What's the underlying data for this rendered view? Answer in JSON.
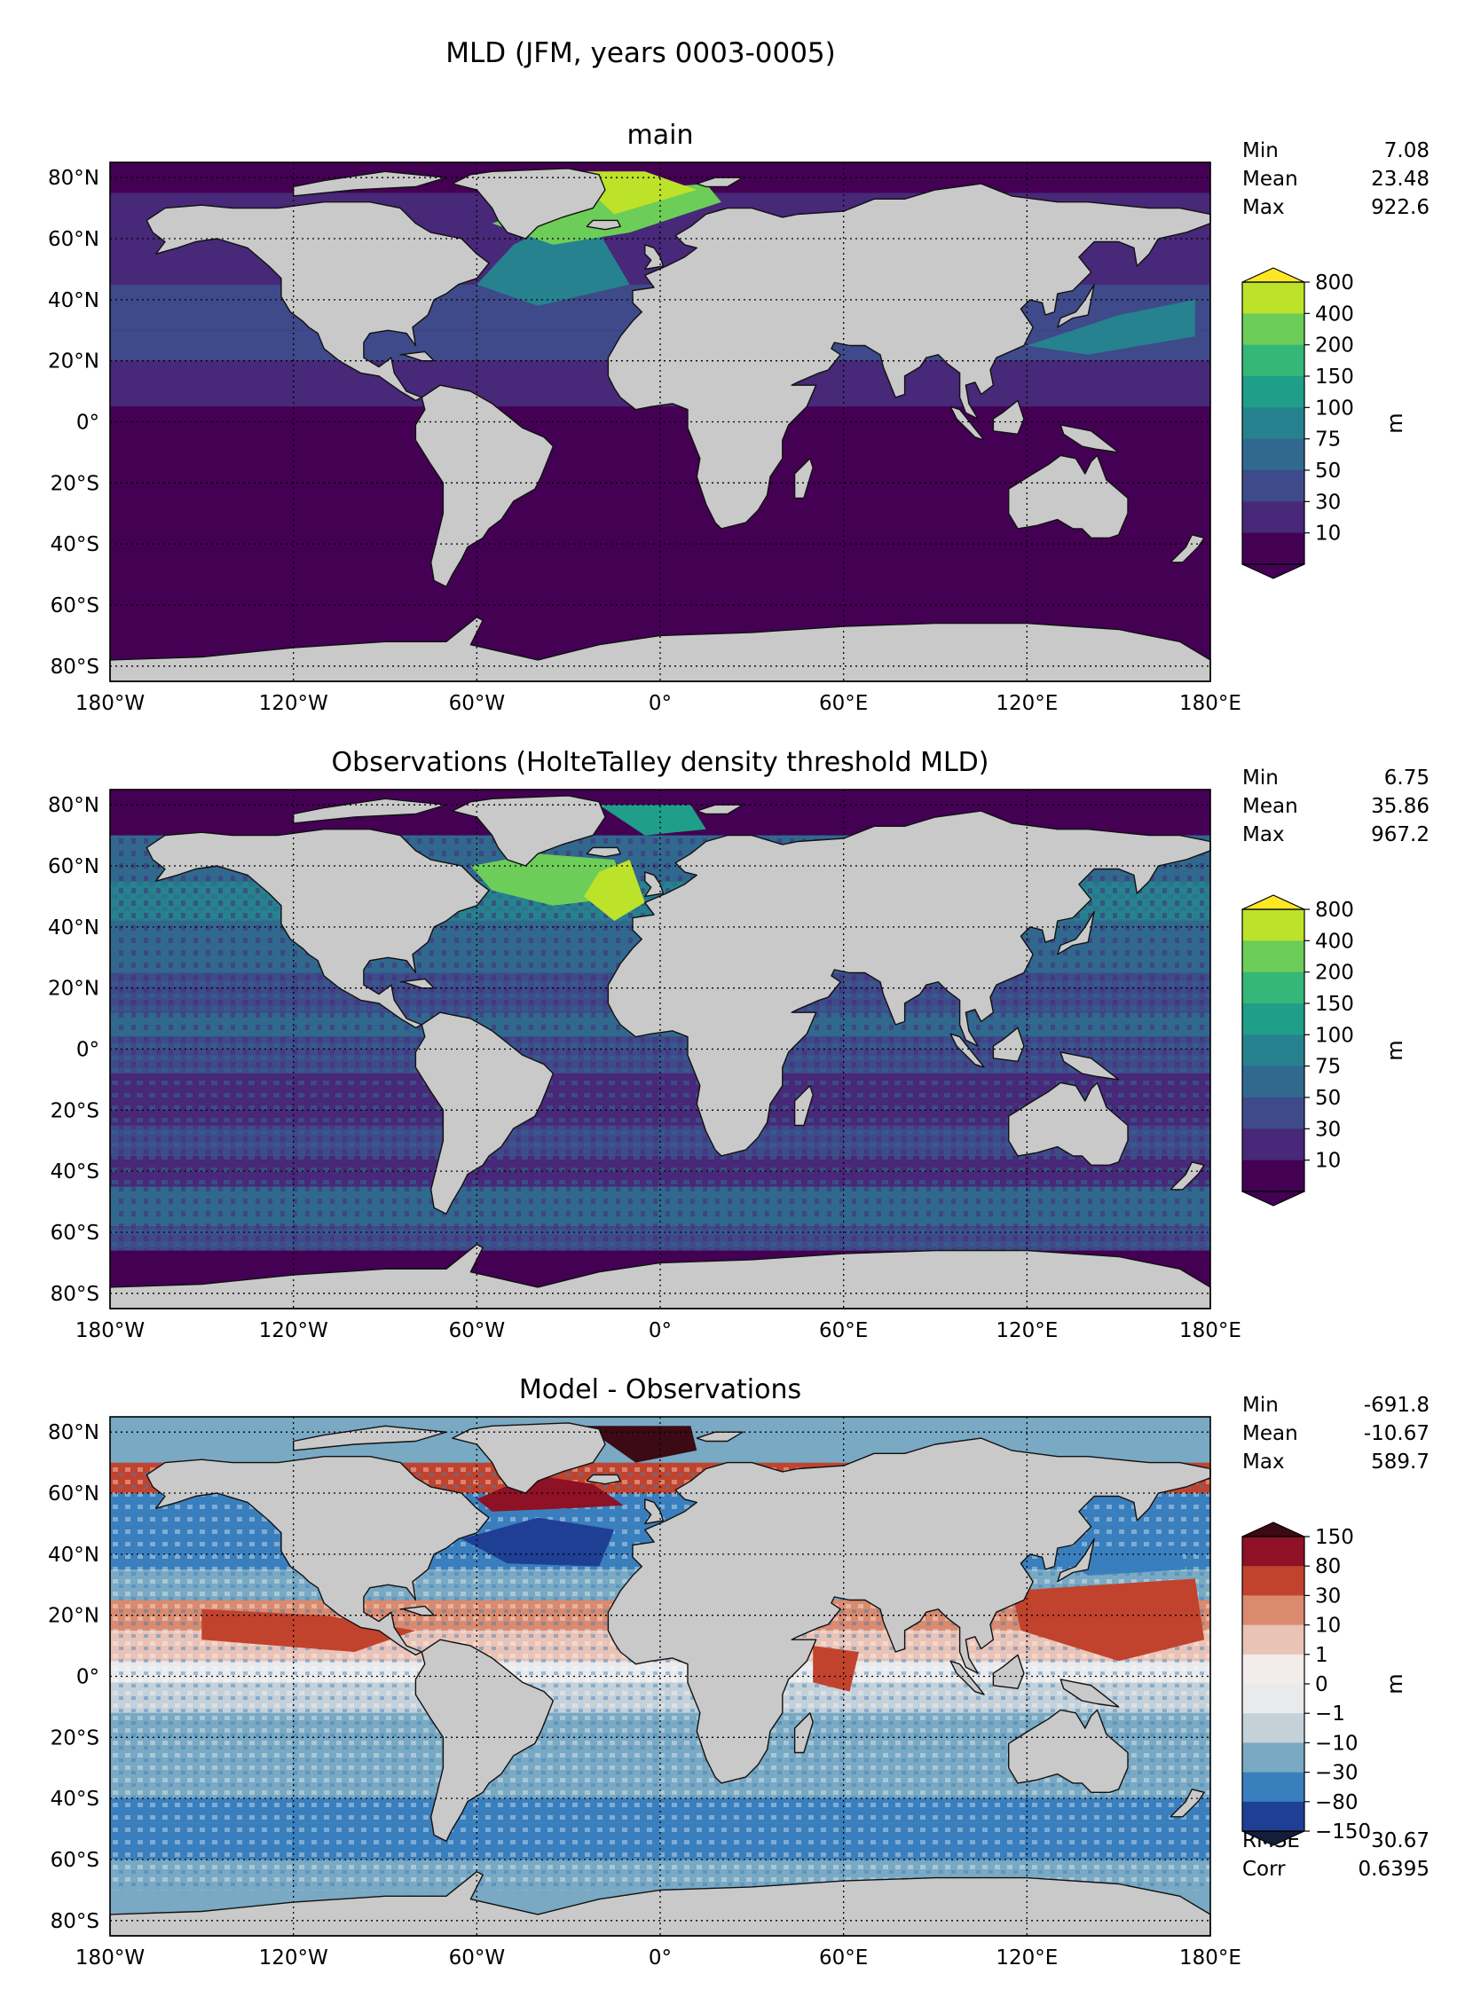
{
  "figure": {
    "title": "MLD (JFM, years 0003-0005)"
  },
  "chart_data": [
    {
      "type": "heatmap",
      "title": "main",
      "x_ticks": [
        "180°W",
        "120°W",
        "60°W",
        "0°",
        "60°E",
        "120°E",
        "180°E"
      ],
      "y_ticks": [
        "80°N",
        "60°N",
        "40°N",
        "20°N",
        "0°",
        "20°S",
        "40°S",
        "60°S",
        "80°S"
      ],
      "x_tick_values": [
        -180,
        -120,
        -60,
        0,
        60,
        120,
        180
      ],
      "y_tick_values": [
        80,
        60,
        40,
        20,
        0,
        -20,
        -40,
        -60,
        -80
      ],
      "xlim": [
        -180,
        180
      ],
      "ylim": [
        -85,
        85
      ],
      "grid": true,
      "stats": [
        {
          "label": "Min",
          "value": "7.08"
        },
        {
          "label": "Mean",
          "value": "23.48"
        },
        {
          "label": "Max",
          "value": "922.6"
        }
      ],
      "colorbar": {
        "levels": [
          "800",
          "400",
          "200",
          "150",
          "100",
          "75",
          "50",
          "30",
          "10"
        ],
        "colors": [
          "#bde22a",
          "#6ccd59",
          "#35b779",
          "#1f9e89",
          "#26828e",
          "#31688e",
          "#3e4a89",
          "#482878",
          "#440154"
        ],
        "over_color": "#fde725",
        "under_color": "#440154",
        "label": "m"
      }
    },
    {
      "type": "heatmap",
      "title": "Observations (HolteTalley density threshold MLD)",
      "x_ticks": [
        "180°W",
        "120°W",
        "60°W",
        "0°",
        "60°E",
        "120°E",
        "180°E"
      ],
      "y_ticks": [
        "80°N",
        "60°N",
        "40°N",
        "20°N",
        "0°",
        "20°S",
        "40°S",
        "60°S",
        "80°S"
      ],
      "x_tick_values": [
        -180,
        -120,
        -60,
        0,
        60,
        120,
        180
      ],
      "y_tick_values": [
        80,
        60,
        40,
        20,
        0,
        -20,
        -40,
        -60,
        -80
      ],
      "xlim": [
        -180,
        180
      ],
      "ylim": [
        -85,
        85
      ],
      "grid": true,
      "stats": [
        {
          "label": "Min",
          "value": "6.75"
        },
        {
          "label": "Mean",
          "value": "35.86"
        },
        {
          "label": "Max",
          "value": "967.2"
        }
      ],
      "colorbar": {
        "levels": [
          "800",
          "400",
          "200",
          "150",
          "100",
          "75",
          "50",
          "30",
          "10"
        ],
        "colors": [
          "#bde22a",
          "#6ccd59",
          "#35b779",
          "#1f9e89",
          "#26828e",
          "#31688e",
          "#3e4a89",
          "#482878",
          "#440154"
        ],
        "over_color": "#fde725",
        "under_color": "#440154",
        "label": "m"
      }
    },
    {
      "type": "heatmap",
      "title": "Model - Observations",
      "x_ticks": [
        "180°W",
        "120°W",
        "60°W",
        "0°",
        "60°E",
        "120°E",
        "180°E"
      ],
      "y_ticks": [
        "80°N",
        "60°N",
        "40°N",
        "20°N",
        "0°",
        "20°S",
        "40°S",
        "60°S",
        "80°S"
      ],
      "x_tick_values": [
        -180,
        -120,
        -60,
        0,
        60,
        120,
        180
      ],
      "y_tick_values": [
        80,
        60,
        40,
        20,
        0,
        -20,
        -40,
        -60,
        -80
      ],
      "xlim": [
        -180,
        180
      ],
      "ylim": [
        -85,
        85
      ],
      "grid": true,
      "stats": [
        {
          "label": "Min",
          "value": "-691.8"
        },
        {
          "label": "Mean",
          "value": "-10.67"
        },
        {
          "label": "Max",
          "value": "589.7"
        }
      ],
      "extra_stats": [
        {
          "label": "RMSE",
          "value": "30.67"
        },
        {
          "label": "Corr",
          "value": "0.6395"
        }
      ],
      "colorbar": {
        "levels": [
          "150",
          "80",
          "30",
          "10",
          "1",
          "0",
          "−1",
          "−10",
          "−30",
          "−80",
          "−150"
        ],
        "colors": [
          "#8e1125",
          "#c1432d",
          "#d98a6f",
          "#e9c3b6",
          "#f2ecea",
          "#e9eaec",
          "#c4d1d9",
          "#79a9c3",
          "#3a7fbd",
          "#1f3f95"
        ],
        "over_color": "#3b0a15",
        "under_color": "#141d3c",
        "label": "m"
      }
    }
  ]
}
